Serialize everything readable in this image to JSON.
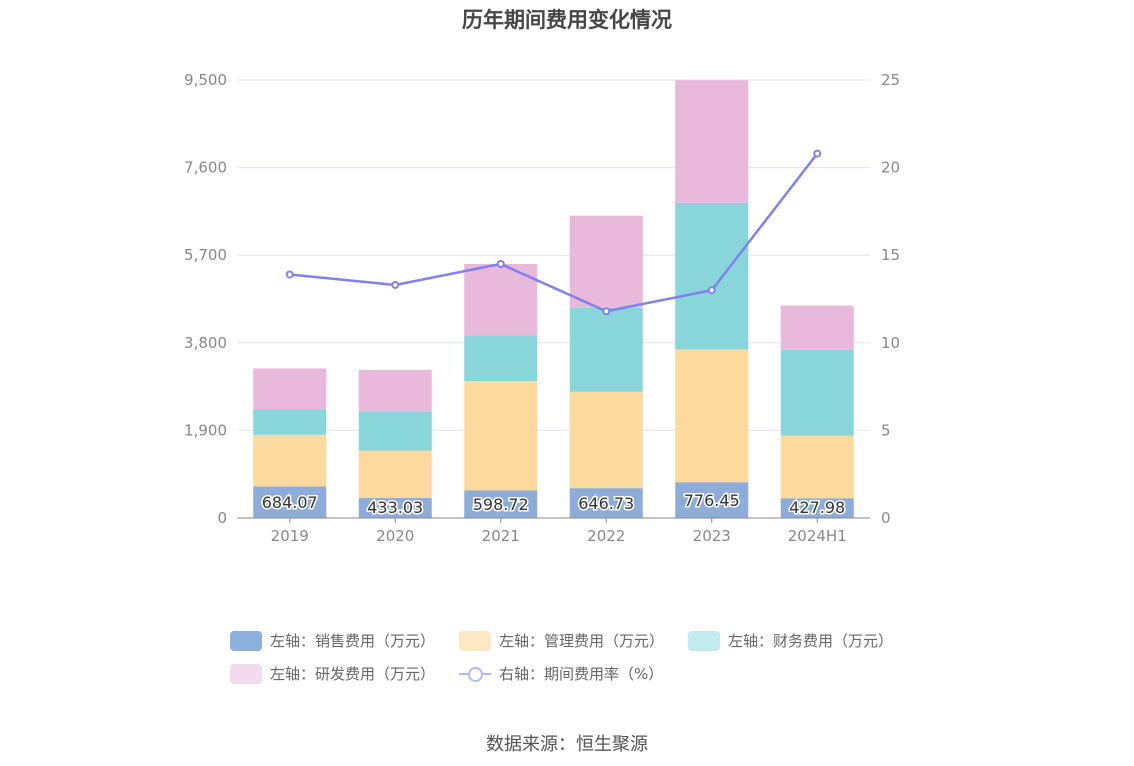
{
  "title": "历年期间费用变化情况",
  "source": "数据来源：恒生聚源",
  "legend": [
    {
      "label": "左轴：销售费用（万元）",
      "color": "#8eb0dc"
    },
    {
      "label": "左轴：管理费用（万元）",
      "color": "#fde8c4"
    },
    {
      "label": "左轴：财务费用（万元）",
      "color": "#c2ebee"
    },
    {
      "label": "左轴：研发费用（万元）",
      "color": "#f3dbed"
    },
    {
      "label": "右轴：期间费用率（%）",
      "color": "#b5b8f7"
    }
  ],
  "chart_data": {
    "type": "bar",
    "stacked": true,
    "title": "历年期间费用变化情况",
    "categories": [
      "2019",
      "2020",
      "2021",
      "2022",
      "2023",
      "2024H1"
    ],
    "y_left": {
      "ticks": [
        "0",
        "1,900",
        "3,800",
        "5,700",
        "7,600",
        "9,500"
      ],
      "min": 0,
      "max": 9500
    },
    "y_right": {
      "ticks": [
        "0",
        "5",
        "10",
        "15",
        "20",
        "25"
      ],
      "min": 0,
      "max": 25
    },
    "series": [
      {
        "name": "左轴：销售费用（万元）",
        "axis": "left",
        "color": "#8eacd9",
        "values": [
          684.07,
          433.03,
          598.72,
          646.73,
          776.45,
          427.98
        ],
        "labels": [
          "684.07",
          "433.03",
          "598.72",
          "646.73",
          "776.45",
          "427.98"
        ]
      },
      {
        "name": "左轴：管理费用（万元）",
        "axis": "left",
        "color": "#fcd99c",
        "values": [
          1120,
          1030,
          2370,
          2090,
          2880,
          1360
        ]
      },
      {
        "name": "左轴：财务费用（万元）",
        "axis": "left",
        "color": "#88d6da",
        "values": [
          550,
          850,
          990,
          1820,
          3180,
          1860
        ]
      },
      {
        "name": "左轴：研发费用（万元）",
        "axis": "left",
        "color": "#e8b9db",
        "values": [
          890,
          900,
          1550,
          2000,
          2660,
          960
        ]
      },
      {
        "name": "右轴：期间费用率（%）",
        "axis": "right",
        "type": "line",
        "color": "#8180ec",
        "values": [
          13.9,
          13.3,
          14.5,
          11.8,
          13.0,
          20.8
        ]
      }
    ],
    "grid": true,
    "legend_position": "bottom"
  }
}
